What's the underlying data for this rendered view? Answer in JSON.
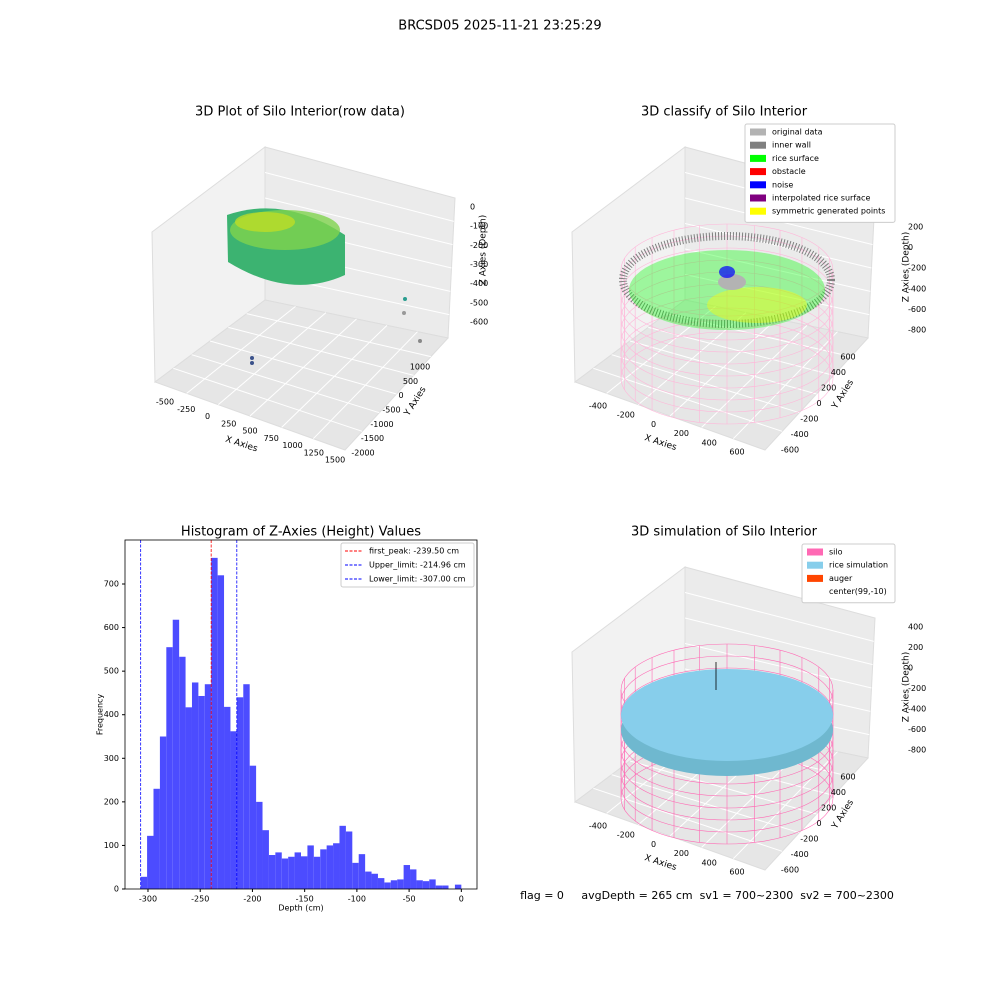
{
  "suptitle": "BRCSD05 2025-11-21 23:25:29",
  "footer": "flag = 0     avgDepth = 265 cm  sv1 = 700~2300  sv2 = 700~2300",
  "chart_data": [
    {
      "type": "scatter3d",
      "title": "3D Plot of Silo Interior(row data)",
      "xlabel": "X Axies",
      "ylabel": "Y Axies",
      "zlabel": "Z Axies (Depth)",
      "xticks": [
        -500,
        -250,
        0,
        250,
        500,
        750,
        1000,
        1250,
        1500
      ],
      "yticks": [
        -2000,
        -1500,
        -1000,
        -500,
        0,
        500,
        1000
      ],
      "zticks": [
        0,
        -100,
        -200,
        -300,
        -400,
        -500,
        -600
      ]
    },
    {
      "type": "scatter3d",
      "title": "3D classify of Silo Interior",
      "xlabel": "X Axies",
      "ylabel": "Y Axies",
      "zlabel": "Z Axies (Depth)",
      "xticks": [
        -400,
        -200,
        0,
        200,
        400,
        600
      ],
      "yticks": [
        -600,
        -400,
        -200,
        0,
        200,
        400,
        600
      ],
      "zticks": [
        200,
        0,
        -200,
        -400,
        -600,
        -800
      ],
      "legend": [
        {
          "name": "original data",
          "color": "#b3b3b3"
        },
        {
          "name": "inner wall",
          "color": "#808080"
        },
        {
          "name": "rice surface",
          "color": "#00ff00"
        },
        {
          "name": "obstacle",
          "color": "#ff0000"
        },
        {
          "name": "noise",
          "color": "#0000ff"
        },
        {
          "name": "interpolated rice surface",
          "color": "#800080"
        },
        {
          "name": "symmetric generated points",
          "color": "#ffff00"
        }
      ]
    },
    {
      "type": "histogram",
      "title": "Histogram of Z-Axies (Height) Values",
      "xlabel": "Depth (cm)",
      "ylabel": "Frequency",
      "color": "#4c4cff",
      "bins": [
        -307,
        -300.86,
        -294.72,
        -288.58,
        -282.44,
        -276.3,
        -270.16,
        -264.02,
        -257.88,
        -251.74,
        -245.6,
        -239.46,
        -233.32,
        -227.18,
        -221.04,
        -214.9,
        -208.76,
        -202.62,
        -196.48,
        -190.34,
        -184.2,
        -178.06,
        -171.92,
        -165.78,
        -159.64,
        -153.5,
        -147.36,
        -141.22,
        -135.08,
        -128.94,
        -122.8,
        -116.66,
        -110.52,
        -104.38,
        -98.24,
        -92.1,
        -85.96,
        -79.82,
        -73.68,
        -67.54,
        -61.4,
        -55.26,
        -49.12,
        -42.98,
        -36.84,
        -30.7,
        -24.56,
        -18.42,
        -12.28,
        -6.14,
        0
      ],
      "values": [
        28,
        122,
        230,
        350,
        555,
        618,
        533,
        417,
        474,
        443,
        470,
        760,
        720,
        418,
        362,
        440,
        470,
        283,
        200,
        135,
        78,
        84,
        70,
        74,
        84,
        75,
        100,
        74,
        91,
        100,
        105,
        145,
        132,
        60,
        80,
        40,
        35,
        25,
        15,
        20,
        22,
        55,
        45,
        20,
        18,
        22,
        8,
        8,
        0,
        10
      ],
      "xlim": [
        -322,
        15
      ],
      "ylim": [
        0,
        801
      ],
      "xticks": [
        -300,
        -250,
        -200,
        -150,
        -100,
        -50,
        0
      ],
      "yticks": [
        0,
        100,
        200,
        300,
        400,
        500,
        600,
        700
      ],
      "vlines": [
        {
          "name": "first_peak: -239.50 cm",
          "value": -239.5,
          "color": "#ff0000"
        },
        {
          "name": "Upper_limit: -214.96 cm",
          "value": -214.96,
          "color": "#0000ff"
        },
        {
          "name": "Lower_limit: -307.00 cm",
          "value": -307,
          "color": "#0000ff"
        }
      ]
    },
    {
      "type": "scatter3d",
      "title": "3D simulation of Silo Interior",
      "xlabel": "X Axies",
      "ylabel": "Y Axies",
      "zlabel": "Z Axies (Depth)",
      "xticks": [
        -400,
        -200,
        0,
        200,
        400,
        600
      ],
      "yticks": [
        -600,
        -400,
        -200,
        0,
        200,
        400,
        600
      ],
      "zticks": [
        400,
        200,
        0,
        -200,
        -400,
        -600,
        -800
      ],
      "legend": [
        {
          "name": "silo",
          "color": "#ff69b4"
        },
        {
          "name": "rice simulation",
          "color": "#87ceeb"
        },
        {
          "name": "auger",
          "color": "#ff4500"
        },
        {
          "name": "center(99,-10)",
          "color": "#ffffff"
        }
      ]
    }
  ]
}
